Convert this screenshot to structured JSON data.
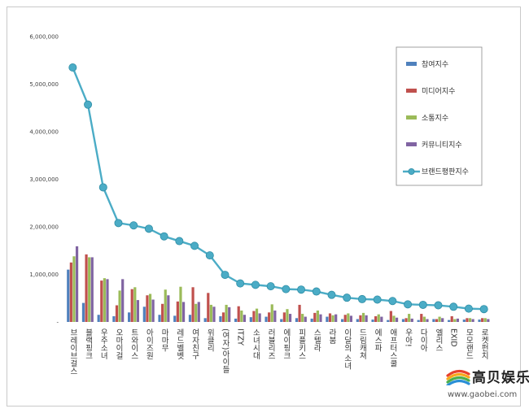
{
  "chart_data": {
    "type": "bar",
    "categories": [
      "브레이브걸스",
      "블랙핑크",
      "우주소녀",
      "오마이걸",
      "트와이스",
      "아이즈원",
      "마마무",
      "레드벨벳",
      "여자친구",
      "위클리",
      "(여자)아이들",
      "ITZY",
      "소녀시대",
      "러블리즈",
      "에이핑크",
      "피플키스",
      "스텔라",
      "라붐",
      "이달의 소녀",
      "드림캐쳐",
      "에스파",
      "애프터스쿨",
      "우아!",
      "다이아",
      "엘리스",
      "EXID",
      "모모랜드",
      "로켓펀치"
    ],
    "series": [
      {
        "name": "참여지수",
        "kind": "bar",
        "color": "#4f81bd",
        "values": [
          1100000,
          400000,
          150000,
          120000,
          200000,
          320000,
          150000,
          130000,
          150000,
          80000,
          120000,
          70000,
          100000,
          110000,
          60000,
          80000,
          70000,
          110000,
          60000,
          60000,
          50000,
          40000,
          60000,
          40000,
          60000,
          40000,
          50000,
          50000
        ]
      },
      {
        "name": "미디어지수",
        "kind": "bar",
        "color": "#c0504d",
        "values": [
          1250000,
          1420000,
          870000,
          350000,
          690000,
          560000,
          380000,
          430000,
          730000,
          610000,
          200000,
          330000,
          230000,
          200000,
          200000,
          360000,
          190000,
          180000,
          150000,
          140000,
          120000,
          230000,
          80000,
          170000,
          60000,
          120000,
          80000,
          80000
        ]
      },
      {
        "name": "소통지수",
        "kind": "bar",
        "color": "#9bbb59",
        "values": [
          1380000,
          1360000,
          920000,
          660000,
          730000,
          590000,
          680000,
          740000,
          380000,
          360000,
          360000,
          240000,
          280000,
          370000,
          270000,
          170000,
          240000,
          140000,
          180000,
          190000,
          160000,
          130000,
          170000,
          110000,
          110000,
          60000,
          80000,
          80000
        ]
      },
      {
        "name": "커뮤니티지수",
        "kind": "bar",
        "color": "#8064a2",
        "values": [
          1590000,
          1360000,
          900000,
          900000,
          460000,
          470000,
          560000,
          420000,
          420000,
          320000,
          310000,
          150000,
          180000,
          240000,
          170000,
          110000,
          160000,
          160000,
          130000,
          140000,
          110000,
          90000,
          70000,
          60000,
          80000,
          70000,
          60000,
          60000
        ]
      },
      {
        "name": "브랜드평판지수",
        "kind": "line",
        "color": "#4bacc6",
        "values": [
          5350000,
          4570000,
          2830000,
          2080000,
          2030000,
          1960000,
          1800000,
          1700000,
          1600000,
          1400000,
          990000,
          810000,
          780000,
          750000,
          690000,
          680000,
          640000,
          570000,
          510000,
          480000,
          470000,
          440000,
          370000,
          360000,
          350000,
          320000,
          280000,
          270000
        ]
      }
    ],
    "ylim": [
      0,
      6000000
    ],
    "yticks": [
      "-",
      "1,000,000",
      "2,000,000",
      "3,000,000",
      "4,000,000",
      "5,000,000",
      "6,000,000"
    ],
    "grid": false,
    "legend_position": "top-right"
  },
  "watermark": {
    "title": "高贝娱乐",
    "url": "www.gaobei.com",
    "logo_colors": [
      "#e8412c",
      "#f7a81b",
      "#4cae4c",
      "#2a8fd6"
    ]
  }
}
